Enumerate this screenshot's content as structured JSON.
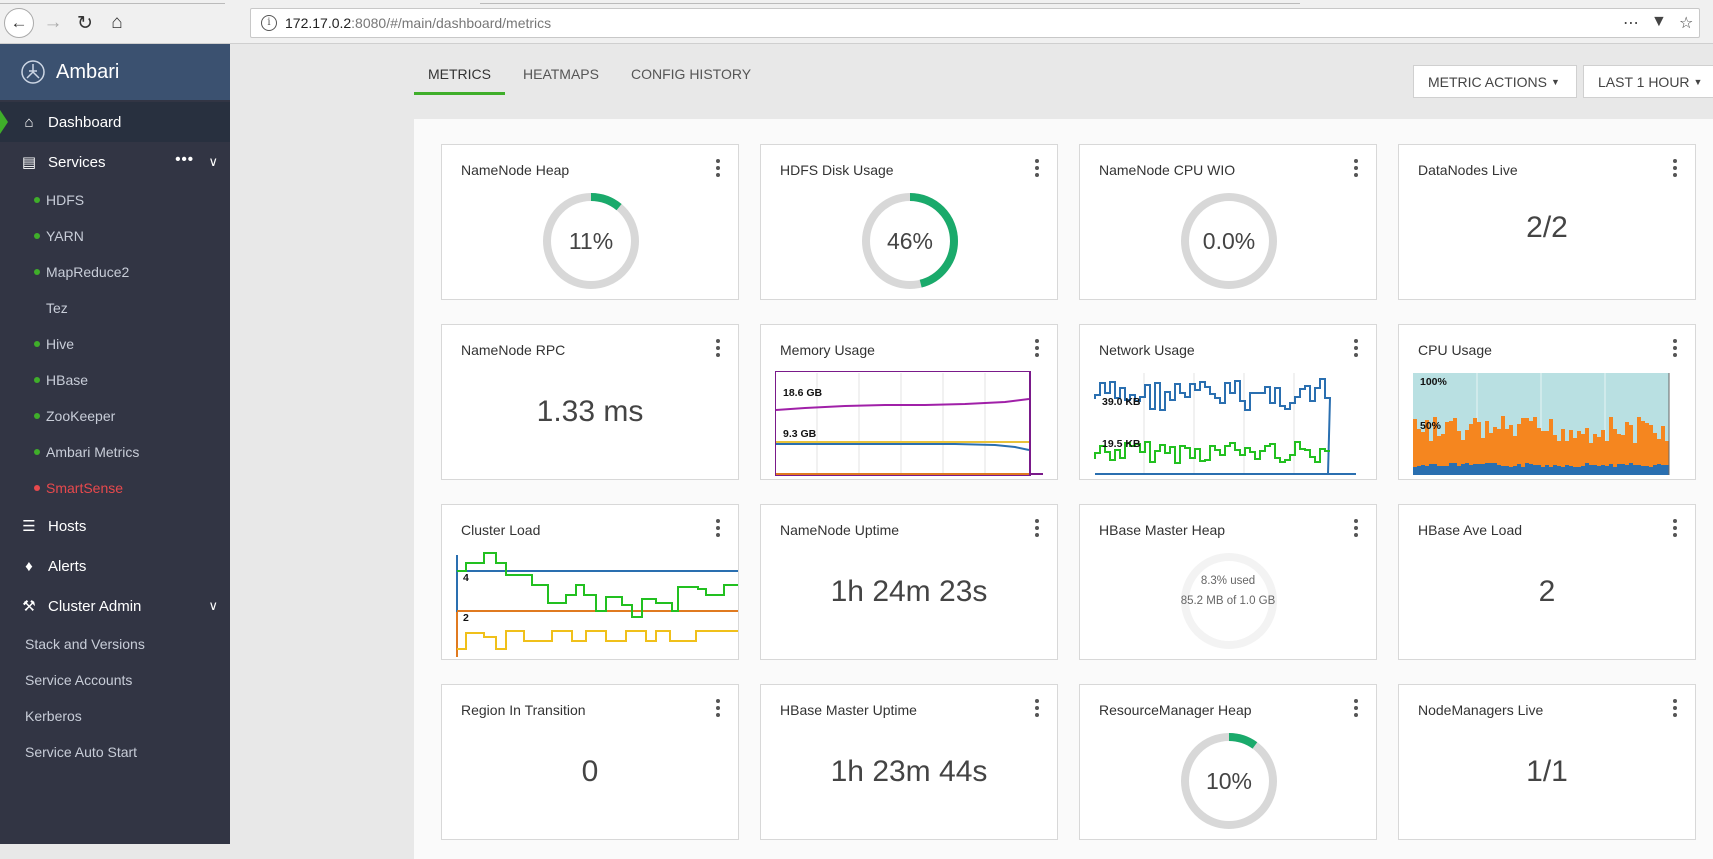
{
  "browser": {
    "url_host": "172.17.0.2",
    "url_path": ":8080/#/main/dashboard/metrics"
  },
  "sidebar": {
    "brand": "Ambari",
    "dashboard": "Dashboard",
    "services": "Services",
    "service_items": [
      {
        "label": "HDFS",
        "status": "green"
      },
      {
        "label": "YARN",
        "status": "green"
      },
      {
        "label": "MapReduce2",
        "status": "green"
      },
      {
        "label": "Tez",
        "status": "none"
      },
      {
        "label": "Hive",
        "status": "green"
      },
      {
        "label": "HBase",
        "status": "green"
      },
      {
        "label": "ZooKeeper",
        "status": "green"
      },
      {
        "label": "Ambari Metrics",
        "status": "green"
      },
      {
        "label": "SmartSense",
        "status": "red"
      }
    ],
    "hosts": "Hosts",
    "alerts": "Alerts",
    "cluster_admin": "Cluster Admin",
    "admin_items": [
      "Stack and Versions",
      "Service Accounts",
      "Kerberos",
      "Service Auto Start"
    ]
  },
  "tabs": [
    "METRICS",
    "HEATMAPS",
    "CONFIG HISTORY"
  ],
  "buttons": {
    "metric_actions": "METRIC ACTIONS",
    "time_range": "LAST 1 HOUR"
  },
  "colors": {
    "accent_green": "#3fae2a",
    "gauge_green": "#1aaa6b",
    "gauge_track": "#d8d8d8",
    "sidebar": "#323544",
    "brand": "#3b5170"
  },
  "widgets": {
    "namenode_heap": {
      "title": "NameNode Heap",
      "value": "11%",
      "fraction": 0.11
    },
    "hdfs_disk": {
      "title": "HDFS Disk Usage",
      "value": "46%",
      "fraction": 0.46
    },
    "namenode_cpu": {
      "title": "NameNode CPU WIO",
      "value": "0.0%",
      "fraction": 0.0
    },
    "datanodes_live": {
      "title": "DataNodes Live",
      "value": "2/2"
    },
    "namenode_rpc": {
      "title": "NameNode RPC",
      "value": "1.33 ms"
    },
    "memory_usage": {
      "title": "Memory Usage",
      "labels": [
        "18.6 GB",
        "9.3 GB"
      ]
    },
    "network_usage": {
      "title": "Network Usage",
      "labels": [
        "39.0 KB",
        "19.5 KB"
      ]
    },
    "cpu_usage": {
      "title": "CPU Usage",
      "labels": [
        "100%",
        "50%"
      ]
    },
    "cluster_load": {
      "title": "Cluster Load",
      "labels": [
        "4",
        "2"
      ]
    },
    "namenode_uptime": {
      "title": "NameNode Uptime",
      "value": "1h 24m 23s"
    },
    "hbase_master_heap": {
      "title": "HBase Master Heap",
      "used": "8.3% used",
      "detail": "85.2 MB of 1.0 GB"
    },
    "hbase_ave_load": {
      "title": "HBase Ave Load",
      "value": "2"
    },
    "region_transition": {
      "title": "Region In Transition",
      "value": "0"
    },
    "hbase_master_uptime": {
      "title": "HBase Master Uptime",
      "value": "1h 23m 44s"
    },
    "rm_heap": {
      "title": "ResourceManager Heap",
      "value": "10%",
      "fraction": 0.1
    },
    "nodemanagers_live": {
      "title": "NodeManagers Live",
      "value": "1/1"
    }
  }
}
